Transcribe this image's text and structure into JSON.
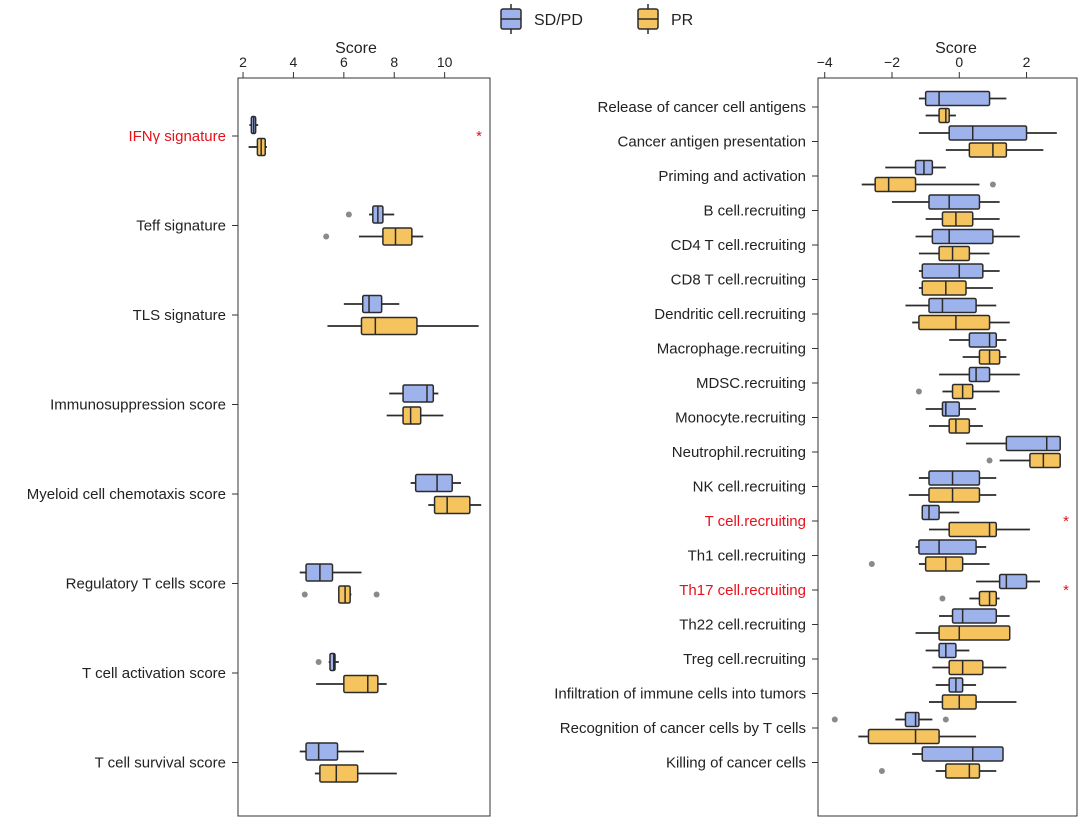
{
  "colors": {
    "sdpd": "#9eb3ec",
    "pr": "#f6c45e",
    "line": "#2b2b2b",
    "highlight": "#e8101a",
    "outlier": "#8a8a8a"
  },
  "legend": {
    "items": [
      {
        "label": "SD/PD",
        "color": "#9eb3ec"
      },
      {
        "label": "PR",
        "color": "#f6c45e"
      }
    ]
  },
  "chart_data": [
    {
      "type": "box",
      "orientation": "horizontal",
      "xlabel": "Score",
      "xlim": [
        1.8,
        11.8
      ],
      "ticks": [
        2,
        4,
        6,
        8,
        10
      ],
      "series": [
        "SD/PD",
        "PR"
      ],
      "categories": [
        {
          "label": "IFNγ signature",
          "highlight": true,
          "significance": "*",
          "sdpd": {
            "min": 2.25,
            "q1": 2.33,
            "median": 2.42,
            "q3": 2.5,
            "max": 2.6,
            "outliers": []
          },
          "pr": {
            "min": 2.22,
            "q1": 2.57,
            "median": 2.72,
            "q3": 2.88,
            "max": 2.95,
            "outliers": []
          }
        },
        {
          "label": "Teff signature",
          "highlight": false,
          "significance": "",
          "sdpd": {
            "min": 7.0,
            "q1": 7.15,
            "median": 7.35,
            "q3": 7.55,
            "max": 8.0,
            "outliers": [
              6.2
            ]
          },
          "pr": {
            "min": 6.6,
            "q1": 7.55,
            "median": 8.05,
            "q3": 8.7,
            "max": 9.15,
            "outliers": [
              5.3
            ]
          }
        },
        {
          "label": "TLS signature",
          "highlight": false,
          "significance": "",
          "sdpd": {
            "min": 6.0,
            "q1": 6.75,
            "median": 7.0,
            "q3": 7.5,
            "max": 8.2,
            "outliers": []
          },
          "pr": {
            "min": 5.35,
            "q1": 6.7,
            "median": 7.25,
            "q3": 8.9,
            "max": 11.35,
            "outliers": []
          }
        },
        {
          "label": "Immunosuppression score",
          "highlight": false,
          "significance": "",
          "sdpd": {
            "min": 7.8,
            "q1": 8.35,
            "median": 9.3,
            "q3": 9.55,
            "max": 9.75,
            "outliers": []
          },
          "pr": {
            "min": 7.7,
            "q1": 8.35,
            "median": 8.65,
            "q3": 9.05,
            "max": 9.95,
            "outliers": []
          }
        },
        {
          "label": "Myeloid cell chemotaxis score",
          "highlight": false,
          "significance": "",
          "sdpd": {
            "min": 8.65,
            "q1": 8.85,
            "median": 9.7,
            "q3": 10.3,
            "max": 10.65,
            "outliers": []
          },
          "pr": {
            "min": 9.35,
            "q1": 9.6,
            "median": 10.1,
            "q3": 11.0,
            "max": 11.45,
            "outliers": []
          }
        },
        {
          "label": "Regulatory T cells score",
          "highlight": false,
          "significance": "",
          "sdpd": {
            "min": 4.25,
            "q1": 4.5,
            "median": 5.05,
            "q3": 5.55,
            "max": 6.7,
            "outliers": []
          },
          "pr": {
            "min": 5.8,
            "q1": 5.8,
            "median": 6.05,
            "q3": 6.25,
            "max": 6.3,
            "outliers": [
              4.45,
              7.3
            ]
          }
        },
        {
          "label": "T cell activation score",
          "highlight": false,
          "significance": "",
          "sdpd": {
            "min": 5.4,
            "q1": 5.45,
            "median": 5.6,
            "q3": 5.65,
            "max": 5.8,
            "outliers": [
              5.0
            ]
          },
          "pr": {
            "min": 4.9,
            "q1": 6.0,
            "median": 6.95,
            "q3": 7.35,
            "max": 7.7,
            "outliers": []
          }
        },
        {
          "label": "T cell survival score",
          "highlight": false,
          "significance": "",
          "sdpd": {
            "min": 4.25,
            "q1": 4.5,
            "median": 5.0,
            "q3": 5.75,
            "max": 6.8,
            "outliers": []
          },
          "pr": {
            "min": 4.85,
            "q1": 5.05,
            "median": 5.7,
            "q3": 6.55,
            "max": 8.1,
            "outliers": []
          }
        }
      ]
    },
    {
      "type": "box",
      "orientation": "horizontal",
      "xlabel": "Score",
      "xlim": [
        -4.2,
        3.5
      ],
      "ticks": [
        -4,
        -2,
        0,
        2
      ],
      "series": [
        "SD/PD",
        "PR"
      ],
      "categories": [
        {
          "label": "Release of cancer cell antigens",
          "highlight": false,
          "significance": "",
          "sdpd": {
            "min": -1.2,
            "q1": -1.0,
            "median": -0.6,
            "q3": 0.9,
            "max": 1.4,
            "outliers": []
          },
          "pr": {
            "min": -1.0,
            "q1": -0.6,
            "median": -0.4,
            "q3": -0.3,
            "max": -0.1,
            "outliers": []
          }
        },
        {
          "label": "Cancer antigen presentation",
          "highlight": false,
          "significance": "",
          "sdpd": {
            "min": -1.2,
            "q1": -0.3,
            "median": 0.4,
            "q3": 2.0,
            "max": 2.9,
            "outliers": []
          },
          "pr": {
            "min": -0.4,
            "q1": 0.3,
            "median": 1.0,
            "q3": 1.4,
            "max": 2.5,
            "outliers": []
          }
        },
        {
          "label": "Priming and activation",
          "highlight": false,
          "significance": "",
          "sdpd": {
            "min": -2.2,
            "q1": -1.3,
            "median": -1.05,
            "q3": -0.8,
            "max": -0.4,
            "outliers": []
          },
          "pr": {
            "min": -2.9,
            "q1": -2.5,
            "median": -2.1,
            "q3": -1.3,
            "max": 0.6,
            "outliers": [
              1.0
            ]
          }
        },
        {
          "label": "B cell.recruiting",
          "highlight": false,
          "significance": "",
          "sdpd": {
            "min": -2.0,
            "q1": -0.9,
            "median": -0.3,
            "q3": 0.6,
            "max": 1.2,
            "outliers": []
          },
          "pr": {
            "min": -1.0,
            "q1": -0.5,
            "median": -0.1,
            "q3": 0.4,
            "max": 1.2,
            "outliers": []
          }
        },
        {
          "label": "CD4 T cell.recruiting",
          "highlight": false,
          "significance": "",
          "sdpd": {
            "min": -1.3,
            "q1": -0.8,
            "median": -0.3,
            "q3": 1.0,
            "max": 1.8,
            "outliers": []
          },
          "pr": {
            "min": -1.2,
            "q1": -0.6,
            "median": -0.2,
            "q3": 0.3,
            "max": 0.9,
            "outliers": []
          }
        },
        {
          "label": "CD8 T cell.recruiting",
          "highlight": false,
          "significance": "",
          "sdpd": {
            "min": -1.2,
            "q1": -1.1,
            "median": 0.0,
            "q3": 0.7,
            "max": 1.2,
            "outliers": []
          },
          "pr": {
            "min": -1.2,
            "q1": -1.1,
            "median": -0.4,
            "q3": 0.2,
            "max": 1.0,
            "outliers": []
          }
        },
        {
          "label": "Dendritic cell.recruiting",
          "highlight": false,
          "significance": "",
          "sdpd": {
            "min": -1.6,
            "q1": -0.9,
            "median": -0.5,
            "q3": 0.5,
            "max": 1.1,
            "outliers": []
          },
          "pr": {
            "min": -1.4,
            "q1": -1.2,
            "median": -0.1,
            "q3": 0.9,
            "max": 1.5,
            "outliers": []
          }
        },
        {
          "label": "Macrophage.recruiting",
          "highlight": false,
          "significance": "",
          "sdpd": {
            "min": -0.3,
            "q1": 0.3,
            "median": 0.9,
            "q3": 1.1,
            "max": 1.4,
            "outliers": []
          },
          "pr": {
            "min": 0.1,
            "q1": 0.6,
            "median": 0.9,
            "q3": 1.2,
            "max": 1.4,
            "outliers": []
          }
        },
        {
          "label": "MDSC.recruiting",
          "highlight": false,
          "significance": "",
          "sdpd": {
            "min": -0.6,
            "q1": 0.3,
            "median": 0.5,
            "q3": 0.9,
            "max": 1.8,
            "outliers": []
          },
          "pr": {
            "min": -0.5,
            "q1": -0.2,
            "median": 0.1,
            "q3": 0.4,
            "max": 1.2,
            "outliers": [
              -1.2
            ]
          }
        },
        {
          "label": "Monocyte.recruiting",
          "highlight": false,
          "significance": "",
          "sdpd": {
            "min": -1.0,
            "q1": -0.5,
            "median": -0.4,
            "q3": 0.0,
            "max": 0.5,
            "outliers": []
          },
          "pr": {
            "min": -0.9,
            "q1": -0.3,
            "median": -0.1,
            "q3": 0.3,
            "max": 0.7,
            "outliers": []
          }
        },
        {
          "label": "Neutrophil.recruiting",
          "highlight": false,
          "significance": "",
          "sdpd": {
            "min": 0.2,
            "q1": 1.4,
            "median": 2.6,
            "q3": 3.0,
            "max": 3.0,
            "outliers": []
          },
          "pr": {
            "min": 1.2,
            "q1": 2.1,
            "median": 2.5,
            "q3": 3.0,
            "max": 3.0,
            "outliers": [
              0.9
            ]
          }
        },
        {
          "label": "NK cell.recruiting",
          "highlight": false,
          "significance": "",
          "sdpd": {
            "min": -1.2,
            "q1": -0.9,
            "median": -0.2,
            "q3": 0.6,
            "max": 1.1,
            "outliers": []
          },
          "pr": {
            "min": -1.5,
            "q1": -0.9,
            "median": -0.2,
            "q3": 0.6,
            "max": 1.1,
            "outliers": []
          }
        },
        {
          "label": "T cell.recruiting",
          "highlight": true,
          "significance": "*",
          "sdpd": {
            "min": -1.1,
            "q1": -1.1,
            "median": -0.9,
            "q3": -0.6,
            "max": 0.0,
            "outliers": []
          },
          "pr": {
            "min": -0.9,
            "q1": -0.3,
            "median": 0.9,
            "q3": 1.1,
            "max": 2.1,
            "outliers": []
          }
        },
        {
          "label": "Th1 cell.recruiting",
          "highlight": false,
          "significance": "",
          "sdpd": {
            "min": -1.3,
            "q1": -1.2,
            "median": -0.6,
            "q3": 0.5,
            "max": 0.8,
            "outliers": []
          },
          "pr": {
            "min": -1.2,
            "q1": -1.0,
            "median": -0.4,
            "q3": 0.1,
            "max": 0.9,
            "outliers": [
              -2.6
            ]
          }
        },
        {
          "label": "Th17 cell.recruiting",
          "highlight": true,
          "significance": "*",
          "sdpd": {
            "min": 0.5,
            "q1": 1.2,
            "median": 1.4,
            "q3": 2.0,
            "max": 2.4,
            "outliers": []
          },
          "pr": {
            "min": 0.3,
            "q1": 0.6,
            "median": 0.9,
            "q3": 1.1,
            "max": 1.2,
            "outliers": [
              -0.5
            ]
          }
        },
        {
          "label": "Th22 cell.recruiting",
          "highlight": false,
          "significance": "",
          "sdpd": {
            "min": -0.6,
            "q1": -0.2,
            "median": 0.1,
            "q3": 1.1,
            "max": 1.5,
            "outliers": []
          },
          "pr": {
            "min": -1.3,
            "q1": -0.6,
            "median": 0.0,
            "q3": 1.5,
            "max": 1.5,
            "outliers": []
          }
        },
        {
          "label": "Treg cell.recruiting",
          "highlight": false,
          "significance": "",
          "sdpd": {
            "min": -1.0,
            "q1": -0.6,
            "median": -0.4,
            "q3": -0.1,
            "max": 0.3,
            "outliers": []
          },
          "pr": {
            "min": -0.8,
            "q1": -0.3,
            "median": 0.1,
            "q3": 0.7,
            "max": 1.4,
            "outliers": []
          }
        },
        {
          "label": "Infiltration of immune cells into tumors",
          "highlight": false,
          "significance": "",
          "sdpd": {
            "min": -0.7,
            "q1": -0.3,
            "median": -0.1,
            "q3": 0.1,
            "max": 0.5,
            "outliers": []
          },
          "pr": {
            "min": -0.9,
            "q1": -0.5,
            "median": 0.0,
            "q3": 0.5,
            "max": 1.7,
            "outliers": []
          }
        },
        {
          "label": "Recognition of cancer cells by T cells",
          "highlight": false,
          "significance": "",
          "sdpd": {
            "min": -1.9,
            "q1": -1.6,
            "median": -1.3,
            "q3": -1.2,
            "max": -0.8,
            "outliers": [
              -3.7,
              -0.4
            ]
          },
          "pr": {
            "min": -3.0,
            "q1": -2.7,
            "median": -1.3,
            "q3": -0.6,
            "max": 0.5,
            "outliers": []
          }
        },
        {
          "label": "Killing of cancer cells",
          "highlight": false,
          "significance": "",
          "sdpd": {
            "min": -1.4,
            "q1": -1.1,
            "median": 0.4,
            "q3": 1.3,
            "max": 1.3,
            "outliers": []
          },
          "pr": {
            "min": -0.7,
            "q1": -0.4,
            "median": 0.3,
            "q3": 0.6,
            "max": 1.1,
            "outliers": [
              -2.3
            ]
          }
        }
      ]
    }
  ]
}
